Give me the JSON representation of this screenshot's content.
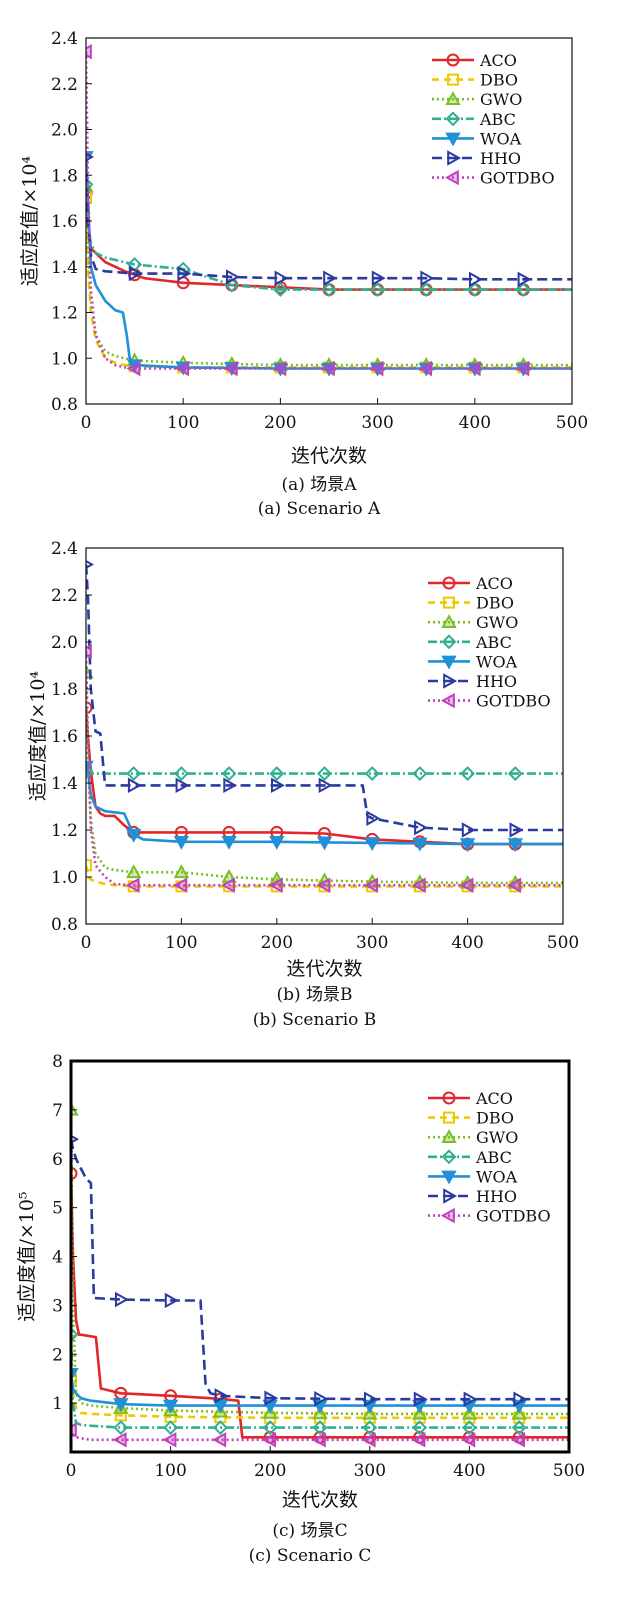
{
  "chart_data": [
    {
      "type": "line",
      "xlabel": "迭代次数",
      "ylabel": "适应度值/×10⁴",
      "xlim": [
        0,
        500
      ],
      "ylim": [
        0.8,
        2.4
      ],
      "xticks": [
        0,
        100,
        200,
        300,
        400,
        500
      ],
      "yticks": [
        0.8,
        1.0,
        1.2,
        1.4,
        1.6,
        1.8,
        2.0,
        2.2,
        2.4
      ],
      "caption_cn": "(a) 场景A",
      "caption_en": "(a) Scenario A",
      "legend_position": "top-right",
      "grid": false,
      "series": [
        {
          "name": "ACO",
          "color": "#e0282a",
          "marker": "circle",
          "x": [
            0,
            2,
            5,
            10,
            20,
            40,
            60,
            80,
            100,
            150,
            200,
            250,
            300,
            350,
            400,
            450,
            500
          ],
          "y": [
            1.72,
            1.6,
            1.48,
            1.46,
            1.42,
            1.38,
            1.35,
            1.34,
            1.33,
            1.32,
            1.31,
            1.3,
            1.3,
            1.3,
            1.3,
            1.3,
            1.3
          ]
        },
        {
          "name": "DBO",
          "color": "#f0c800",
          "marker": "square",
          "x": [
            0,
            2,
            5,
            10,
            20,
            30,
            40,
            50,
            100,
            150,
            200,
            300,
            400,
            500
          ],
          "y": [
            1.7,
            1.4,
            1.2,
            1.08,
            1.0,
            0.98,
            0.97,
            0.965,
            0.96,
            0.96,
            0.96,
            0.96,
            0.96,
            0.96
          ]
        },
        {
          "name": "GWO",
          "color": "#78c020",
          "marker": "triangle-up",
          "x": [
            0,
            2,
            5,
            10,
            20,
            30,
            40,
            50,
            100,
            150,
            200,
            300,
            400,
            500
          ],
          "y": [
            1.75,
            1.5,
            1.25,
            1.1,
            1.03,
            1.01,
            1.0,
            0.99,
            0.98,
            0.975,
            0.97,
            0.97,
            0.97,
            0.97
          ]
        },
        {
          "name": "ABC",
          "color": "#30b090",
          "marker": "diamond",
          "x": [
            0,
            2,
            5,
            10,
            20,
            50,
            100,
            150,
            200,
            300,
            400,
            500
          ],
          "y": [
            1.76,
            1.6,
            1.5,
            1.46,
            1.44,
            1.41,
            1.39,
            1.32,
            1.3,
            1.3,
            1.3,
            1.3
          ]
        },
        {
          "name": "WOA",
          "color": "#2090d8",
          "marker": "triangle-down",
          "x": [
            0,
            2,
            5,
            10,
            20,
            30,
            38,
            42,
            45,
            50,
            100,
            200,
            300,
            400,
            500
          ],
          "y": [
            1.88,
            1.7,
            1.4,
            1.32,
            1.25,
            1.21,
            1.2,
            1.1,
            1.0,
            0.97,
            0.96,
            0.955,
            0.955,
            0.955,
            0.955
          ]
        },
        {
          "name": "HHO",
          "color": "#2a3aa0",
          "marker": "triangle-right",
          "x": [
            0,
            2,
            5,
            10,
            20,
            50,
            100,
            150,
            200,
            250,
            300,
            350,
            400,
            450,
            500
          ],
          "y": [
            1.88,
            1.6,
            1.45,
            1.39,
            1.38,
            1.37,
            1.37,
            1.355,
            1.35,
            1.35,
            1.35,
            1.35,
            1.345,
            1.345,
            1.345
          ]
        },
        {
          "name": "GOTDBO",
          "color": "#c040c0",
          "marker": "triangle-left",
          "x": [
            0,
            2,
            5,
            10,
            20,
            30,
            40,
            50,
            100,
            200,
            300,
            400,
            500
          ],
          "y": [
            2.34,
            1.8,
            1.3,
            1.1,
            1.0,
            0.97,
            0.96,
            0.955,
            0.955,
            0.955,
            0.955,
            0.955,
            0.955
          ]
        }
      ]
    },
    {
      "type": "line",
      "xlabel": "迭代次数",
      "ylabel": "适应度值/×10⁴",
      "xlim": [
        0,
        500
      ],
      "ylim": [
        0.8,
        2.4
      ],
      "xticks": [
        0,
        100,
        200,
        300,
        400,
        500
      ],
      "yticks": [
        0.8,
        1.0,
        1.2,
        1.4,
        1.6,
        1.8,
        2.0,
        2.2,
        2.4
      ],
      "caption_cn": "(b) 场景B",
      "caption_en": "(b) Scenario B",
      "legend_position": "top-right",
      "grid": false,
      "series": [
        {
          "name": "ACO",
          "color": "#e0282a",
          "marker": "circle",
          "x": [
            0,
            2,
            5,
            10,
            15,
            20,
            30,
            40,
            50,
            100,
            150,
            200,
            250,
            300,
            350,
            400,
            450,
            500
          ],
          "y": [
            1.72,
            1.6,
            1.45,
            1.3,
            1.27,
            1.26,
            1.26,
            1.22,
            1.19,
            1.19,
            1.19,
            1.19,
            1.185,
            1.16,
            1.15,
            1.14,
            1.14,
            1.14
          ]
        },
        {
          "name": "DBO",
          "color": "#f0c800",
          "marker": "square",
          "x": [
            0,
            2,
            5,
            10,
            20,
            30,
            50,
            100,
            200,
            300,
            400,
            500
          ],
          "y": [
            1.05,
            1.0,
            0.99,
            0.98,
            0.97,
            0.965,
            0.96,
            0.96,
            0.96,
            0.96,
            0.96,
            0.96
          ]
        },
        {
          "name": "GWO",
          "color": "#78c020",
          "marker": "triangle-up",
          "x": [
            0,
            2,
            5,
            10,
            20,
            30,
            50,
            100,
            150,
            200,
            300,
            400,
            500
          ],
          "y": [
            1.87,
            1.5,
            1.25,
            1.1,
            1.04,
            1.03,
            1.02,
            1.02,
            1.0,
            0.99,
            0.98,
            0.975,
            0.975
          ]
        },
        {
          "name": "ABC",
          "color": "#30b090",
          "marker": "diamond",
          "x": [
            0,
            2,
            5,
            10,
            50,
            100,
            150,
            200,
            250,
            300,
            350,
            400,
            450,
            500
          ],
          "y": [
            1.45,
            1.44,
            1.44,
            1.44,
            1.44,
            1.44,
            1.44,
            1.44,
            1.44,
            1.44,
            1.44,
            1.44,
            1.44,
            1.44
          ]
        },
        {
          "name": "WOA",
          "color": "#2090d8",
          "marker": "triangle-down",
          "x": [
            0,
            2,
            5,
            10,
            20,
            40,
            50,
            60,
            100,
            200,
            300,
            400,
            500
          ],
          "y": [
            1.47,
            1.45,
            1.35,
            1.3,
            1.28,
            1.27,
            1.18,
            1.16,
            1.15,
            1.15,
            1.145,
            1.14,
            1.14
          ]
        },
        {
          "name": "HHO",
          "color": "#2a3aa0",
          "marker": "triangle-right",
          "x": [
            0,
            2,
            5,
            10,
            15,
            20,
            50,
            100,
            150,
            200,
            250,
            280,
            290,
            295,
            300,
            350,
            400,
            450,
            500
          ],
          "y": [
            2.33,
            2.2,
            1.8,
            1.62,
            1.61,
            1.39,
            1.39,
            1.39,
            1.39,
            1.39,
            1.39,
            1.39,
            1.39,
            1.26,
            1.25,
            1.21,
            1.2,
            1.2,
            1.2
          ]
        },
        {
          "name": "GOTDBO",
          "color": "#c040c0",
          "marker": "triangle-left",
          "x": [
            0,
            2,
            5,
            10,
            20,
            30,
            50,
            100,
            200,
            300,
            400,
            500
          ],
          "y": [
            1.96,
            1.6,
            1.2,
            1.05,
            1.0,
            0.97,
            0.965,
            0.965,
            0.965,
            0.965,
            0.965,
            0.965
          ]
        }
      ]
    },
    {
      "type": "line",
      "xlabel": "迭代次数",
      "ylabel": "适应度值/×10⁵",
      "xlim": [
        0,
        500
      ],
      "ylim": [
        0,
        8
      ],
      "xticks": [
        0,
        100,
        200,
        300,
        400,
        500
      ],
      "yticks": [
        1,
        2,
        3,
        4,
        5,
        6,
        7,
        8
      ],
      "caption_cn": "(c) 场景C",
      "caption_en": "(c) Scenario C",
      "legend_position": "top-right",
      "grid": false,
      "series": [
        {
          "name": "ACO",
          "color": "#e0282a",
          "marker": "circle",
          "x": [
            0,
            2,
            5,
            8,
            10,
            25,
            30,
            40,
            50,
            100,
            140,
            168,
            172,
            200,
            300,
            400,
            500
          ],
          "y": [
            5.7,
            4.0,
            2.7,
            2.4,
            2.4,
            2.35,
            1.3,
            1.25,
            1.2,
            1.15,
            1.1,
            1.05,
            0.3,
            0.3,
            0.3,
            0.3,
            0.3
          ]
        },
        {
          "name": "DBO",
          "color": "#f0c800",
          "marker": "square",
          "x": [
            0,
            2,
            5,
            10,
            20,
            50,
            100,
            200,
            300,
            400,
            500
          ],
          "y": [
            1.5,
            1.2,
            0.9,
            0.8,
            0.78,
            0.75,
            0.72,
            0.7,
            0.7,
            0.7,
            0.7
          ]
        },
        {
          "name": "GWO",
          "color": "#78c020",
          "marker": "triangle-up",
          "x": [
            0,
            2,
            5,
            10,
            20,
            50,
            100,
            200,
            300,
            400,
            500
          ],
          "y": [
            7.0,
            3.0,
            1.2,
            1.0,
            0.95,
            0.9,
            0.85,
            0.8,
            0.78,
            0.78,
            0.78
          ]
        },
        {
          "name": "ABC",
          "color": "#30b090",
          "marker": "diamond",
          "x": [
            0,
            2,
            5,
            10,
            50,
            100,
            200,
            300,
            400,
            500
          ],
          "y": [
            2.4,
            1.0,
            0.6,
            0.55,
            0.5,
            0.5,
            0.5,
            0.5,
            0.5,
            0.5
          ]
        },
        {
          "name": "WOA",
          "color": "#2090d8",
          "marker": "triangle-down",
          "x": [
            0,
            2,
            5,
            10,
            20,
            50,
            100,
            200,
            300,
            400,
            500
          ],
          "y": [
            1.6,
            1.3,
            1.2,
            1.1,
            1.05,
            0.98,
            0.95,
            0.95,
            0.95,
            0.95,
            0.95
          ]
        },
        {
          "name": "HHO",
          "color": "#2a3aa0",
          "marker": "triangle-right",
          "x": [
            0,
            2,
            5,
            15,
            20,
            23,
            50,
            100,
            130,
            135,
            140,
            150,
            200,
            300,
            400,
            500
          ],
          "y": [
            6.4,
            6.2,
            6.0,
            5.6,
            5.5,
            3.15,
            3.12,
            3.1,
            3.1,
            1.4,
            1.2,
            1.15,
            1.1,
            1.08,
            1.08,
            1.08
          ]
        },
        {
          "name": "GOTDBO",
          "color": "#c040c0",
          "marker": "triangle-left",
          "x": [
            0,
            2,
            5,
            10,
            20,
            50,
            100,
            200,
            300,
            400,
            500
          ],
          "y": [
            0.45,
            0.35,
            0.3,
            0.28,
            0.25,
            0.25,
            0.25,
            0.25,
            0.25,
            0.25,
            0.25
          ]
        }
      ]
    }
  ]
}
